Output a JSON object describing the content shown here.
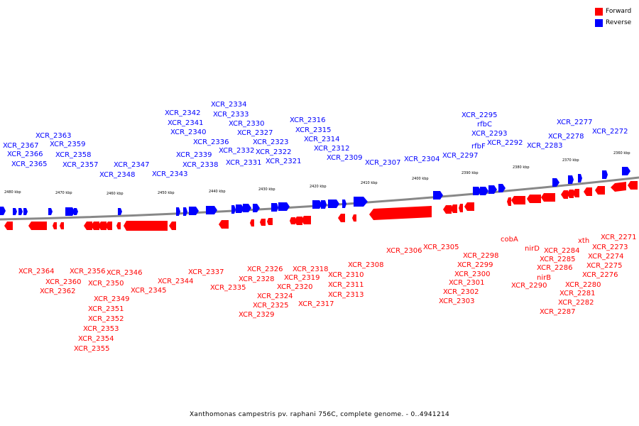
{
  "legend": {
    "items": [
      {
        "label": "Forward",
        "color": "#ff0000"
      },
      {
        "label": "Reverse",
        "color": "#0000ff"
      }
    ]
  },
  "footer": {
    "caption": "Xanthomonas campestris pv. raphani 756C, complete genome. - 0..4941214"
  },
  "colors": {
    "forward": "#ff0000",
    "reverse": "#0000ff",
    "backbone": "#888888",
    "tick": "#000000"
  },
  "ticks": [
    "2480 kbp",
    "2470 kbp",
    "2460 kbp",
    "2450 kbp",
    "2440 kbp",
    "2430 kbp",
    "2420 kbp",
    "2410 kbp",
    "2400 kbp",
    "2390 kbp",
    "2380 kbp",
    "2370 kbp",
    "2360 kbp"
  ],
  "reverse_labels": [
    "XCR_2367",
    "XCR_2366",
    "XCR_2365",
    "XCR_2363",
    "XCR_2359",
    "XCR_2358",
    "XCR_2357",
    "XCR_2348",
    "XCR_2347",
    "XCR_2343",
    "XCR_2342",
    "XCR_2341",
    "XCR_2340",
    "XCR_2339",
    "XCR_2338",
    "XCR_2336",
    "XCR_2334",
    "XCR_2333",
    "XCR_2332",
    "XCR_2331",
    "XCR_2330",
    "XCR_2327",
    "XCR_2323",
    "XCR_2322",
    "XCR_2321",
    "XCR_2316",
    "XCR_2315",
    "XCR_2314",
    "XCR_2312",
    "XCR_2309",
    "XCR_2307",
    "XCR_2304",
    "XCR_2297",
    "XCR_2295",
    "rfbC",
    "XCR_2293",
    "rfbF",
    "XCR_2292",
    "XCR_2283",
    "XCR_2278",
    "XCR_2277",
    "XCR_2272"
  ],
  "forward_labels": [
    "XCR_2364",
    "XCR_2360",
    "XCR_2362",
    "XCR_2356",
    "XCR_2350",
    "XCR_2349",
    "XCR_2351",
    "XCR_2352",
    "XCR_2353",
    "XCR_2354",
    "XCR_2355",
    "XCR_2346",
    "XCR_2345",
    "XCR_2344",
    "XCR_2337",
    "XCR_2335",
    "XCR_2326",
    "XCR_2328",
    "XCR_2324",
    "XCR_2325",
    "XCR_2329",
    "XCR_2318",
    "XCR_2319",
    "XCR_2320",
    "XCR_2317",
    "XCR_2310",
    "XCR_2311",
    "XCR_2313",
    "XCR_2308",
    "XCR_2306",
    "XCR_2305",
    "XCR_2298",
    "XCR_2299",
    "XCR_2300",
    "XCR_2301",
    "XCR_2302",
    "XCR_2303",
    "cobA",
    "nirD",
    "XCR_2290",
    "nirB",
    "XCR_2284",
    "XCR_2285",
    "XCR_2286",
    "XCR_2287",
    "xth",
    "XCR_2280",
    "XCR_2281",
    "XCR_2282",
    "XCR_2276",
    "XCR_2275",
    "XCR_2274",
    "XCR_2273",
    "XCR_2271"
  ]
}
